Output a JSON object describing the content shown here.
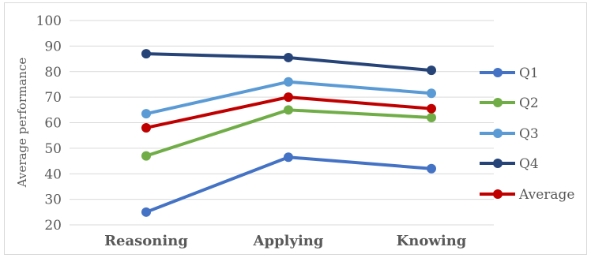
{
  "chart_data": {
    "type": "line",
    "title": "",
    "xlabel": "",
    "ylabel": "Average performance",
    "categories": [
      "Reasoning",
      "Applying",
      "Knowing"
    ],
    "ylim": [
      20,
      100
    ],
    "yticks": [
      20,
      30,
      40,
      50,
      60,
      70,
      80,
      90,
      100
    ],
    "grid": true,
    "legend_position": "right",
    "series": [
      {
        "name": "Q1",
        "values": [
          25,
          46.5,
          42
        ],
        "color": "#4472c4"
      },
      {
        "name": "Q2",
        "values": [
          47,
          65,
          62
        ],
        "color": "#70ad47"
      },
      {
        "name": "Q3",
        "values": [
          63.5,
          76,
          71.5
        ],
        "color": "#5b9bd5"
      },
      {
        "name": "Q4",
        "values": [
          87,
          85.5,
          80.5
        ],
        "color": "#264478"
      },
      {
        "name": "Average",
        "values": [
          58,
          70,
          65.5
        ],
        "color": "#c00000"
      }
    ]
  }
}
